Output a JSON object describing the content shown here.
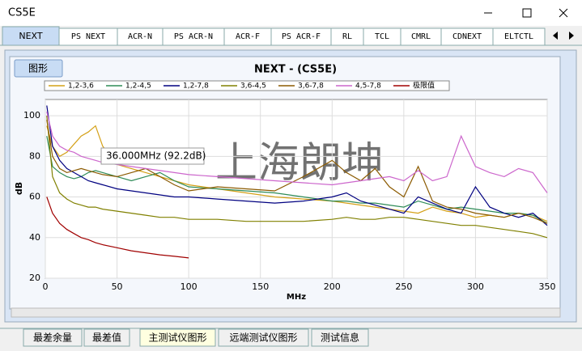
{
  "window": {
    "title": "CS5E"
  },
  "tabs": [
    "NEXT",
    "PS NEXT",
    "ACR-N",
    "PS ACR-N",
    "ACR-F",
    "PS ACR-F",
    "RL",
    "TCL",
    "CMRL",
    "CDNEXT",
    "ELTCTL"
  ],
  "button": "图形",
  "bottom_tabs": [
    "最差余量",
    "最差值",
    "主测试仪图形",
    "远端测试仪图形",
    "测试信息"
  ],
  "chart_data": {
    "type": "line",
    "title": "NEXT - (CS5E)",
    "x_label": "MHz",
    "y_label": "dB",
    "tooltip": "36.000MHz (92.2dB)",
    "watermark": "上海朗坤",
    "xlim": [
      0,
      350
    ],
    "ylim": [
      20,
      108
    ],
    "xticks": [
      0,
      50,
      100,
      150,
      200,
      250,
      300,
      350
    ],
    "yticks": [
      20,
      40,
      60,
      80,
      100
    ],
    "grid": true,
    "x": [
      1,
      5,
      10,
      15,
      20,
      25,
      30,
      35,
      40,
      50,
      60,
      70,
      80,
      90,
      100,
      120,
      140,
      160,
      180,
      200,
      210,
      220,
      230,
      240,
      250,
      260,
      270,
      280,
      290,
      300,
      310,
      320,
      330,
      340,
      350
    ],
    "series": [
      {
        "name": "1,2-3,6",
        "color": "#d4a017",
        "values": [
          95,
          85,
          80,
          82,
          86,
          90,
          92,
          95,
          85,
          76,
          74,
          72,
          70,
          68,
          66,
          64,
          62,
          60,
          59,
          58,
          57,
          56,
          55,
          54,
          53,
          52,
          55,
          53,
          52,
          50,
          51,
          50,
          52,
          51,
          48
        ]
      },
      {
        "name": "1,2-4,5",
        "color": "#2e8b57",
        "values": [
          90,
          75,
          72,
          70,
          69,
          70,
          72,
          73,
          72,
          70,
          68,
          70,
          72,
          68,
          65,
          64,
          63,
          62,
          60,
          58,
          58,
          57,
          57,
          56,
          55,
          58,
          56,
          54,
          55,
          54,
          53,
          52,
          52,
          51,
          47
        ]
      },
      {
        "name": "1,2-7,8",
        "color": "#000080",
        "values": [
          105,
          85,
          78,
          74,
          72,
          70,
          68,
          67,
          66,
          64,
          63,
          62,
          61,
          60,
          60,
          59,
          58,
          57,
          58,
          60,
          62,
          58,
          56,
          54,
          52,
          60,
          57,
          54,
          52,
          65,
          55,
          52,
          50,
          52,
          46
        ]
      },
      {
        "name": "3,6-4,5",
        "color": "#808000",
        "values": [
          100,
          70,
          62,
          59,
          57,
          56,
          55,
          55,
          54,
          53,
          52,
          51,
          50,
          50,
          49,
          49,
          48,
          48,
          48,
          49,
          50,
          49,
          49,
          50,
          50,
          49,
          48,
          47,
          46,
          46,
          45,
          44,
          43,
          42,
          40
        ]
      },
      {
        "name": "3,6-7,8",
        "color": "#8b5a00",
        "values": [
          98,
          80,
          74,
          72,
          73,
          74,
          73,
          72,
          71,
          70,
          72,
          74,
          70,
          66,
          63,
          65,
          64,
          63,
          70,
          78,
          72,
          68,
          74,
          65,
          60,
          75,
          58,
          55,
          54,
          52,
          51,
          50,
          52,
          50,
          47
        ]
      },
      {
        "name": "4,5-7,8",
        "color": "#cc66cc",
        "values": [
          102,
          90,
          85,
          83,
          82,
          80,
          79,
          78,
          77,
          76,
          75,
          74,
          73,
          72,
          71,
          70,
          69,
          68,
          67,
          66,
          67,
          68,
          69,
          70,
          68,
          73,
          68,
          70,
          90,
          75,
          72,
          70,
          74,
          72,
          62
        ]
      },
      {
        "name": "极限值",
        "color": "#a00000",
        "values": [
          60,
          52,
          47,
          44,
          42,
          40,
          39,
          37.5,
          36.5,
          35,
          33.5,
          32.5,
          31.5,
          30.8,
          30,
          null,
          null,
          null,
          null,
          null,
          null,
          null,
          null,
          null,
          null,
          null,
          null,
          null,
          null,
          null,
          null,
          null,
          null,
          null,
          null
        ]
      }
    ]
  }
}
